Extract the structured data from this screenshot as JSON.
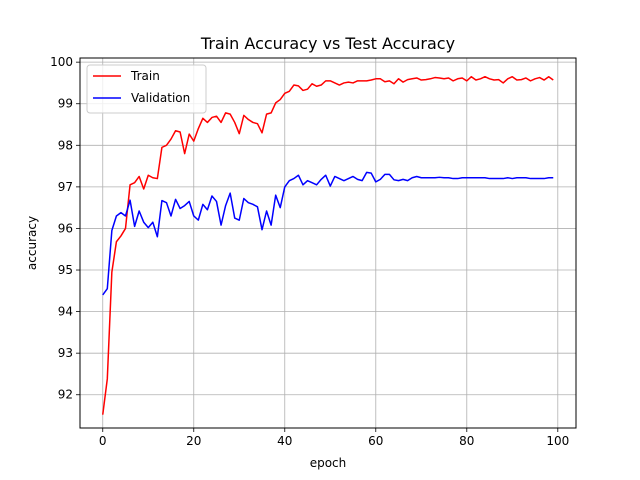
{
  "chart_data": {
    "type": "line",
    "title": "Train Accuracy vs Test Accuracy",
    "xlabel": "epoch",
    "ylabel": "accuracy",
    "xlim": [
      -5,
      104
    ],
    "ylim": [
      91.2,
      100.1
    ],
    "xticks": [
      0,
      20,
      40,
      60,
      80,
      100
    ],
    "yticks": [
      92,
      93,
      94,
      95,
      96,
      97,
      98,
      99,
      100
    ],
    "grid": true,
    "legend_position": "upper-left",
    "x": [
      0,
      1,
      2,
      3,
      4,
      5,
      6,
      7,
      8,
      9,
      10,
      11,
      12,
      13,
      14,
      15,
      16,
      17,
      18,
      19,
      20,
      21,
      22,
      23,
      24,
      25,
      26,
      27,
      28,
      29,
      30,
      31,
      32,
      33,
      34,
      35,
      36,
      37,
      38,
      39,
      40,
      41,
      42,
      43,
      44,
      45,
      46,
      47,
      48,
      49,
      50,
      51,
      52,
      53,
      54,
      55,
      56,
      57,
      58,
      59,
      60,
      61,
      62,
      63,
      64,
      65,
      66,
      67,
      68,
      69,
      70,
      71,
      72,
      73,
      74,
      75,
      76,
      77,
      78,
      79,
      80,
      81,
      82,
      83,
      84,
      85,
      86,
      87,
      88,
      89,
      90,
      91,
      92,
      93,
      94,
      95,
      96,
      97,
      98,
      99
    ],
    "series": [
      {
        "name": "Train",
        "color": "#ff0000",
        "values": [
          91.52,
          92.38,
          94.95,
          95.68,
          95.82,
          96.0,
          97.05,
          97.1,
          97.25,
          96.95,
          97.28,
          97.22,
          97.2,
          97.95,
          98.0,
          98.15,
          98.35,
          98.32,
          97.8,
          98.27,
          98.1,
          98.4,
          98.65,
          98.55,
          98.67,
          98.7,
          98.55,
          98.78,
          98.75,
          98.55,
          98.28,
          98.72,
          98.62,
          98.55,
          98.52,
          98.3,
          98.75,
          98.78,
          99.02,
          99.1,
          99.25,
          99.3,
          99.45,
          99.43,
          99.32,
          99.35,
          99.48,
          99.42,
          99.45,
          99.55,
          99.55,
          99.5,
          99.45,
          99.5,
          99.52,
          99.5,
          99.55,
          99.55,
          99.55,
          99.57,
          99.6,
          99.6,
          99.53,
          99.55,
          99.48,
          99.6,
          99.52,
          99.58,
          99.6,
          99.62,
          99.57,
          99.58,
          99.6,
          99.63,
          99.62,
          99.6,
          99.62,
          99.55,
          99.6,
          99.62,
          99.55,
          99.65,
          99.57,
          99.6,
          99.65,
          99.6,
          99.57,
          99.58,
          99.5,
          99.6,
          99.65,
          99.57,
          99.58,
          99.62,
          99.55,
          99.6,
          99.63,
          99.57,
          99.65,
          99.57
        ]
      },
      {
        "name": "Validation",
        "color": "#0000ff",
        "values": [
          94.4,
          94.55,
          95.95,
          96.3,
          96.38,
          96.3,
          96.68,
          96.05,
          96.42,
          96.15,
          96.02,
          96.15,
          95.8,
          96.67,
          96.62,
          96.3,
          96.7,
          96.48,
          96.55,
          96.65,
          96.3,
          96.2,
          96.58,
          96.45,
          96.78,
          96.65,
          96.08,
          96.55,
          96.85,
          96.25,
          96.2,
          96.72,
          96.62,
          96.58,
          96.52,
          95.97,
          96.42,
          96.08,
          96.8,
          96.5,
          97.0,
          97.15,
          97.2,
          97.28,
          97.05,
          97.15,
          97.1,
          97.05,
          97.18,
          97.28,
          97.02,
          97.25,
          97.2,
          97.15,
          97.2,
          97.25,
          97.18,
          97.15,
          97.35,
          97.33,
          97.12,
          97.18,
          97.3,
          97.3,
          97.17,
          97.15,
          97.18,
          97.15,
          97.22,
          97.25,
          97.22,
          97.22,
          97.22,
          97.22,
          97.23,
          97.22,
          97.22,
          97.2,
          97.2,
          97.22,
          97.22,
          97.22,
          97.22,
          97.22,
          97.22,
          97.2,
          97.2,
          97.2,
          97.2,
          97.22,
          97.2,
          97.22,
          97.22,
          97.22,
          97.2,
          97.2,
          97.2,
          97.2,
          97.22,
          97.22
        ]
      }
    ]
  }
}
